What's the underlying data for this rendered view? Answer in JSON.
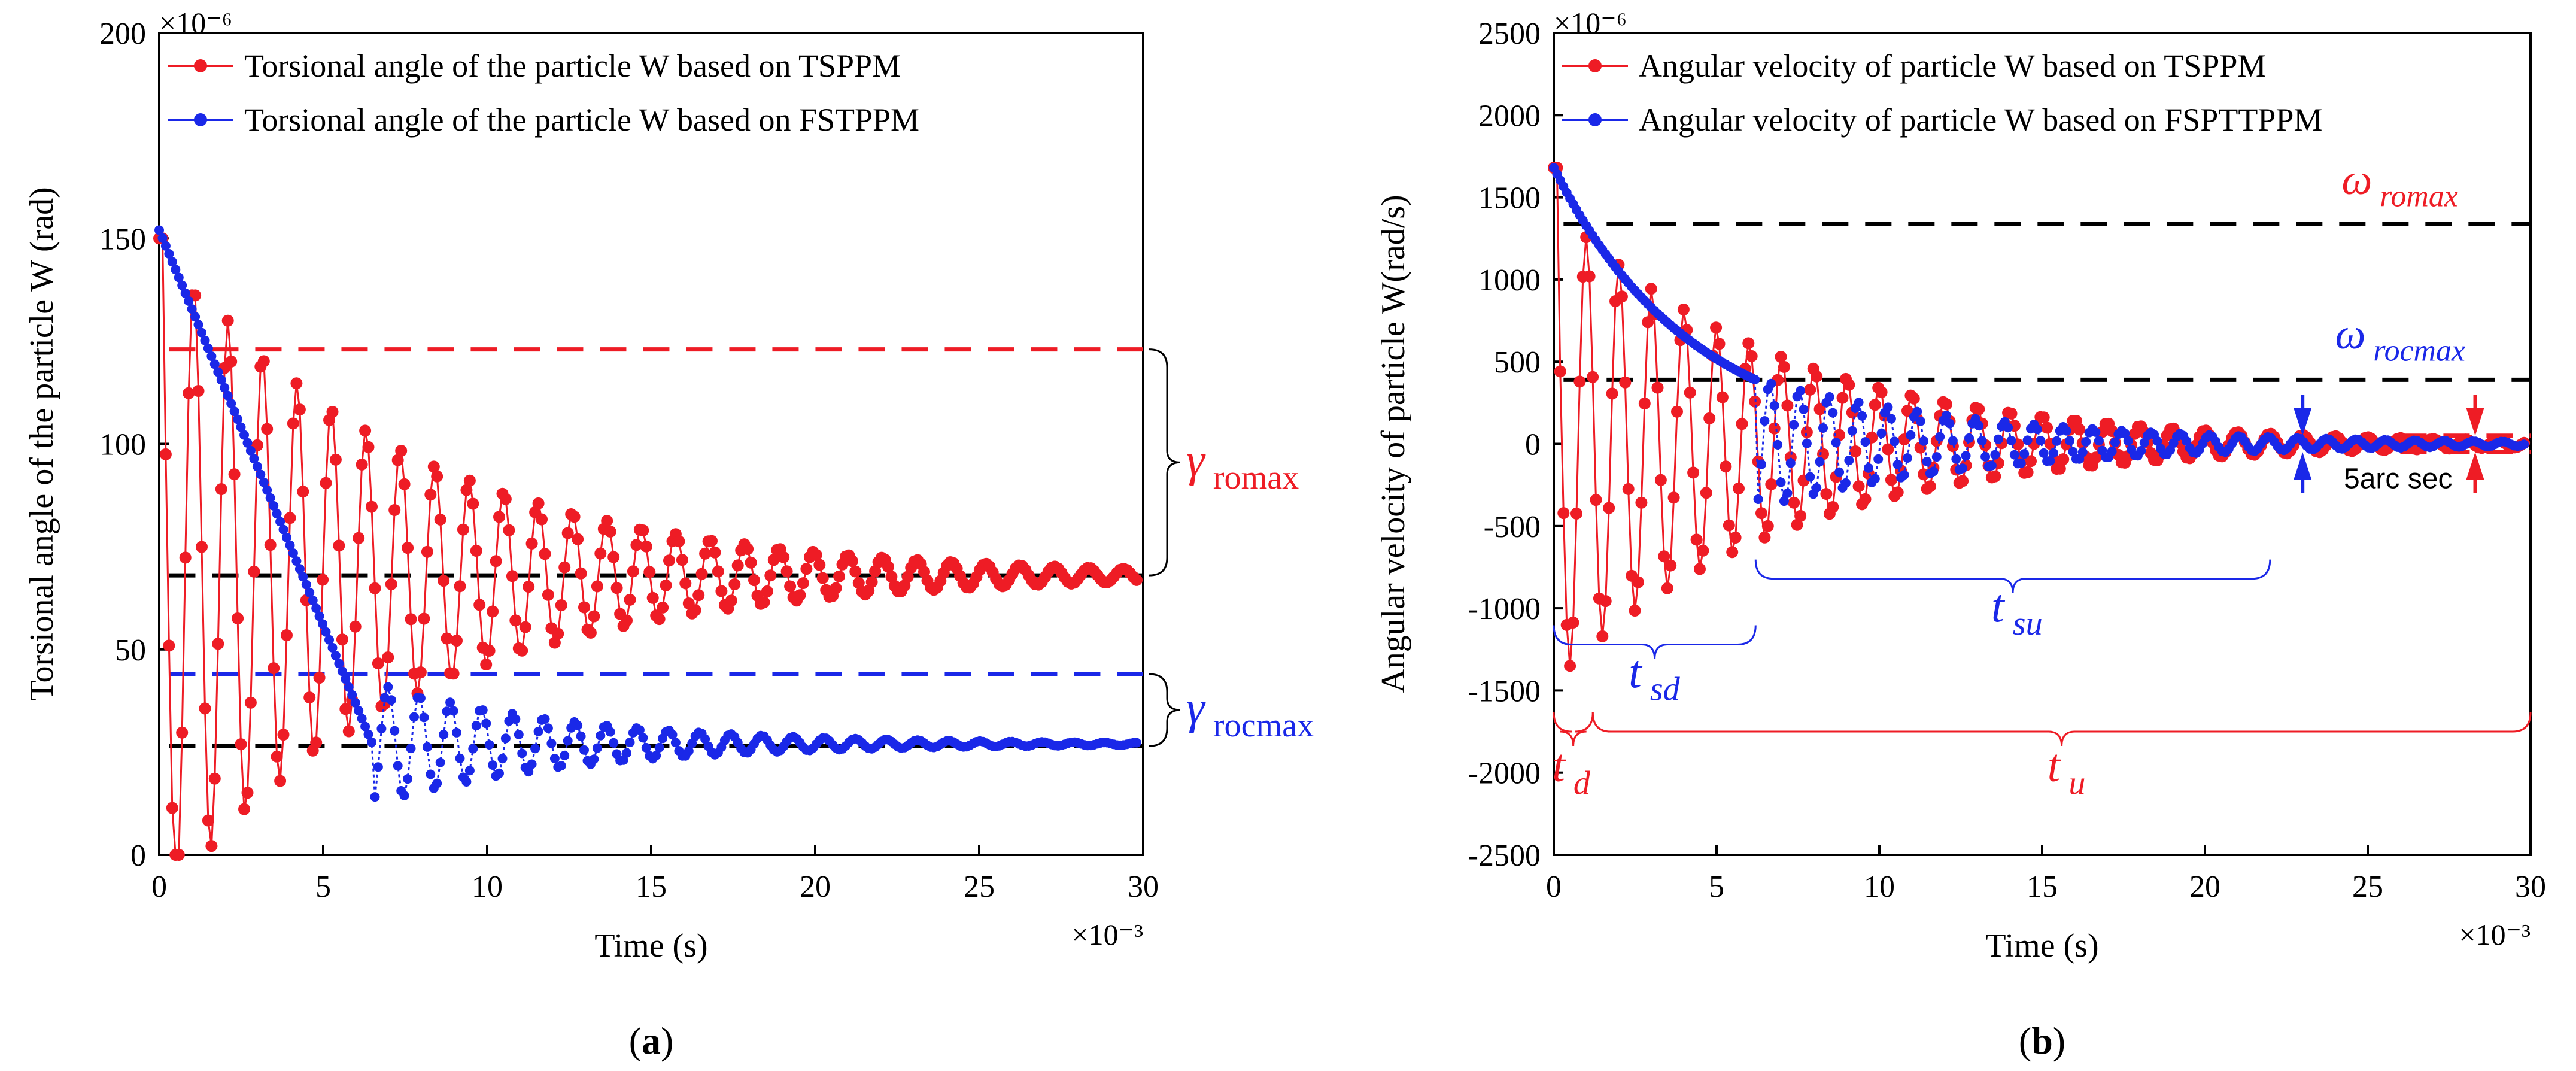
{
  "figure": {
    "panel_labels": [
      "(a)",
      "(b)"
    ]
  },
  "chart_data": [
    {
      "type": "line",
      "panel": "(a)",
      "xlabel": "Time (s)",
      "ylabel": "Torsional angle of the particle W (rad)",
      "x_multiplier": "×10⁻³",
      "y_multiplier": "×10⁻⁶",
      "xlim": [
        0,
        30
      ],
      "ylim": [
        0,
        200
      ],
      "xticks": [
        0,
        5,
        10,
        15,
        20,
        25,
        30
      ],
      "yticks": [
        0,
        50,
        100,
        150,
        200
      ],
      "legend": {
        "placement": "top-left",
        "entries": [
          "Torsional angle of the particle W based on TSPPM",
          "Torsional angle of the particle W based on FSTPPM"
        ]
      },
      "series": [
        {
          "name": "Torsional angle of the particle W based on TSPPM",
          "color": "#ee1c25",
          "model": "damped",
          "t0": 0.0,
          "y0": 150,
          "final": 68,
          "amp0": 82,
          "decay": 7.5,
          "period": 1.05,
          "n": 300,
          "t_end": 29.8
        },
        {
          "name": "Torsional angle of the particle W based on FSTPPM",
          "color": "#1a28e8",
          "model": "exp-then-damped",
          "t0": 0.0,
          "y0": 152,
          "exp_end": 6.5,
          "exp_end_value": 27,
          "final": 27,
          "amp0": 15,
          "decay": 6.0,
          "period": 0.95,
          "n": 300,
          "t_end": 29.8
        }
      ],
      "reference_lines": [
        {
          "label": "TSPPM upper bound",
          "y": 123,
          "color": "#ee1c25",
          "style": "dashed"
        },
        {
          "label": "TSPPM steady",
          "y": 68,
          "color": "#000000",
          "style": "dashed"
        },
        {
          "label": "FSTPPM upper bound",
          "y": 44,
          "color": "#1a28e8",
          "style": "dashed"
        },
        {
          "label": "FSTPPM steady",
          "y": 26.5,
          "color": "#000000",
          "style": "dashed"
        }
      ],
      "annotations": [
        {
          "symbol": "γ",
          "sub": "romax",
          "color": "#ee1c25",
          "y_from": 123,
          "y_to": 68
        },
        {
          "symbol": "γ",
          "sub": "rocmax",
          "color": "#1a28e8",
          "y_from": 44,
          "y_to": 26.5
        }
      ]
    },
    {
      "type": "line",
      "panel": "(b)",
      "xlabel": "Time (s)",
      "ylabel": "Angular velocity of particle W(rad/s)",
      "x_multiplier": "×10⁻³",
      "y_multiplier": "×10⁻⁶",
      "xlim": [
        0,
        30
      ],
      "ylim": [
        -2500,
        2500
      ],
      "xticks": [
        0,
        5,
        10,
        15,
        20,
        25,
        30
      ],
      "yticks": [
        -2500,
        -2000,
        -1500,
        -1000,
        -500,
        0,
        500,
        1000,
        1500,
        2000,
        2500
      ],
      "legend": {
        "placement": "top-left",
        "entries": [
          "Angular velocity of particle W based on TSPPM",
          "Angular velocity of particle W based on FSPTTPPM"
        ]
      },
      "series": [
        {
          "name": "Angular velocity of particle W based on TSPPM",
          "color": "#ee1c25",
          "model": "damped",
          "t0": 0.0,
          "y0": 1680,
          "final": 0,
          "amp0": 1450,
          "decay": 7.0,
          "period": 1.0,
          "n": 300,
          "t_end": 29.8
        },
        {
          "name": "Angular velocity of particle W based on FSPTTPPM",
          "color": "#1a28e8",
          "model": "exp-then-damped",
          "t0": 0.0,
          "y0": 1680,
          "exp_end": 6.2,
          "exp_end_value": 390,
          "final": 0,
          "amp0": 400,
          "decay": 7.0,
          "period": 0.9,
          "n": 300,
          "t_end": 29.8
        }
      ],
      "reference_lines": [
        {
          "label": "ω romax",
          "y": 1340,
          "color": "#000000",
          "style": "dashed"
        },
        {
          "label": "ω rocmax",
          "y": 390,
          "color": "#000000",
          "style": "dashed"
        },
        {
          "label": "5 arc sec upper",
          "y": 50,
          "color": "#ee1c25",
          "style": "dashed"
        },
        {
          "label": "5 arc sec lower",
          "y": -50,
          "color": "#ee1c25",
          "style": "dashed"
        }
      ],
      "annotations": [
        {
          "text": "ω",
          "sub": "romax",
          "color": "#ee1c25"
        },
        {
          "text": "ω",
          "sub": "rocmax",
          "color": "#1a28e8"
        },
        {
          "text": "5arc sec",
          "color": "#000000"
        },
        {
          "text": "t",
          "sub": "d",
          "color": "#ee1c25",
          "x_from": 0,
          "x_to": 1.2
        },
        {
          "text": "t",
          "sub": "u",
          "color": "#ee1c25",
          "x_from": 1.2,
          "x_to": 30
        },
        {
          "text": "t",
          "sub": "sd",
          "color": "#1a28e8",
          "x_from": 0,
          "x_to": 6.2
        },
        {
          "text": "t",
          "sub": "su",
          "color": "#1a28e8",
          "x_from": 6.2,
          "x_to": 22.0
        }
      ]
    }
  ]
}
